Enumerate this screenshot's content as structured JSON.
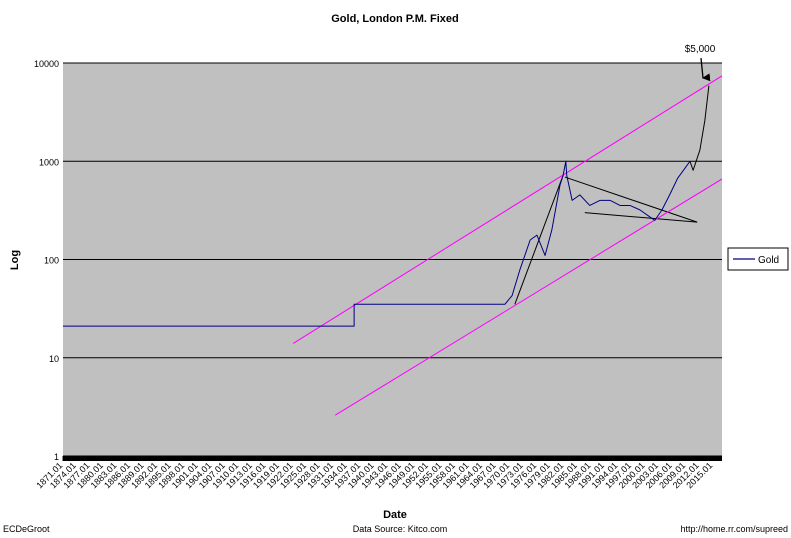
{
  "chart_data": {
    "type": "line",
    "title": "Gold, London P.M. Fixed",
    "x_label": "Date",
    "y_label": "Log",
    "log_y": true,
    "grid": true,
    "legend": "right",
    "plot_color": "#c0c0c0",
    "ylim": [
      1,
      10000
    ],
    "yticks": [
      1,
      10,
      100,
      1000,
      10000
    ],
    "xlim": [
      1871,
      2017
    ],
    "xticks": [
      1871.01,
      1874.01,
      1877.01,
      1880.01,
      1883.01,
      1886.01,
      1889.01,
      1892.01,
      1895.01,
      1898.01,
      1901.01,
      1904.01,
      1907.01,
      1910.01,
      1913.01,
      1916.01,
      1919.01,
      1922.01,
      1925.01,
      1928.01,
      1931.01,
      1934.01,
      1937.01,
      1940.01,
      1943.01,
      1946.01,
      1949.01,
      1952.01,
      1955.01,
      1958.01,
      1961.01,
      1964.01,
      1967.01,
      1970.01,
      1973.01,
      1976.01,
      1979.01,
      1982.01,
      1985.01,
      1988.01,
      1991.01,
      1994.01,
      1997.01,
      2000.01,
      2003.01,
      2006.01,
      2009.01,
      2012.01,
      2015.01
    ],
    "series": [
      {
        "name": "Gold",
        "color": "#000080",
        "x": [
          1871,
          1935.5,
          1935.5,
          1968.9,
          1970.5,
          1972.2,
          1974.5,
          1976,
          1977.8,
          1979.3,
          1981.1,
          1981.8,
          1982.4,
          1982.6,
          1983.8,
          1985.5,
          1987.7,
          1990,
          1992.2,
          1994.4,
          1996.6,
          1998.8,
          2000.6,
          2002.1,
          2003.7,
          2005.4,
          2007.2,
          2008.8,
          2009.9
        ],
        "values": [
          21,
          21,
          35,
          35,
          43,
          78,
          158,
          177,
          110,
          200,
          570,
          720,
          1000,
          720,
          400,
          455,
          355,
          400,
          400,
          355,
          355,
          320,
          280,
          250,
          320,
          455,
          675,
          850,
          1000
        ]
      }
    ],
    "trend_lines": [
      {
        "color": "#000000",
        "x": [
          1971.1,
          1981.8
        ],
        "values": [
          35,
          720
        ]
      },
      {
        "color": "#000000",
        "x": [
          1982.2,
          2011.5
        ],
        "values": [
          690,
          240
        ]
      },
      {
        "color": "#000000",
        "x": [
          1986.6,
          2011.5
        ],
        "values": [
          300,
          240
        ]
      },
      {
        "color": "#000000",
        "x": [
          2009.9,
          2010.6,
          2012.1,
          2013.2,
          2014.1
        ],
        "values": [
          1000,
          810,
          1300,
          2600,
          5900
        ]
      },
      {
        "color": "#ff00ff",
        "x": [
          1922,
          2017
        ],
        "values": [
          14,
          7400
        ]
      },
      {
        "color": "#ff00ff",
        "x": [
          1931.3,
          2017
        ],
        "values": [
          2.6,
          660
        ]
      }
    ],
    "annotation": "$5,000",
    "footer": {
      "left": "ECDeGroot",
      "center": "Data Source:  Kitco.com",
      "right": "http://home.rr.com/supreed"
    }
  }
}
